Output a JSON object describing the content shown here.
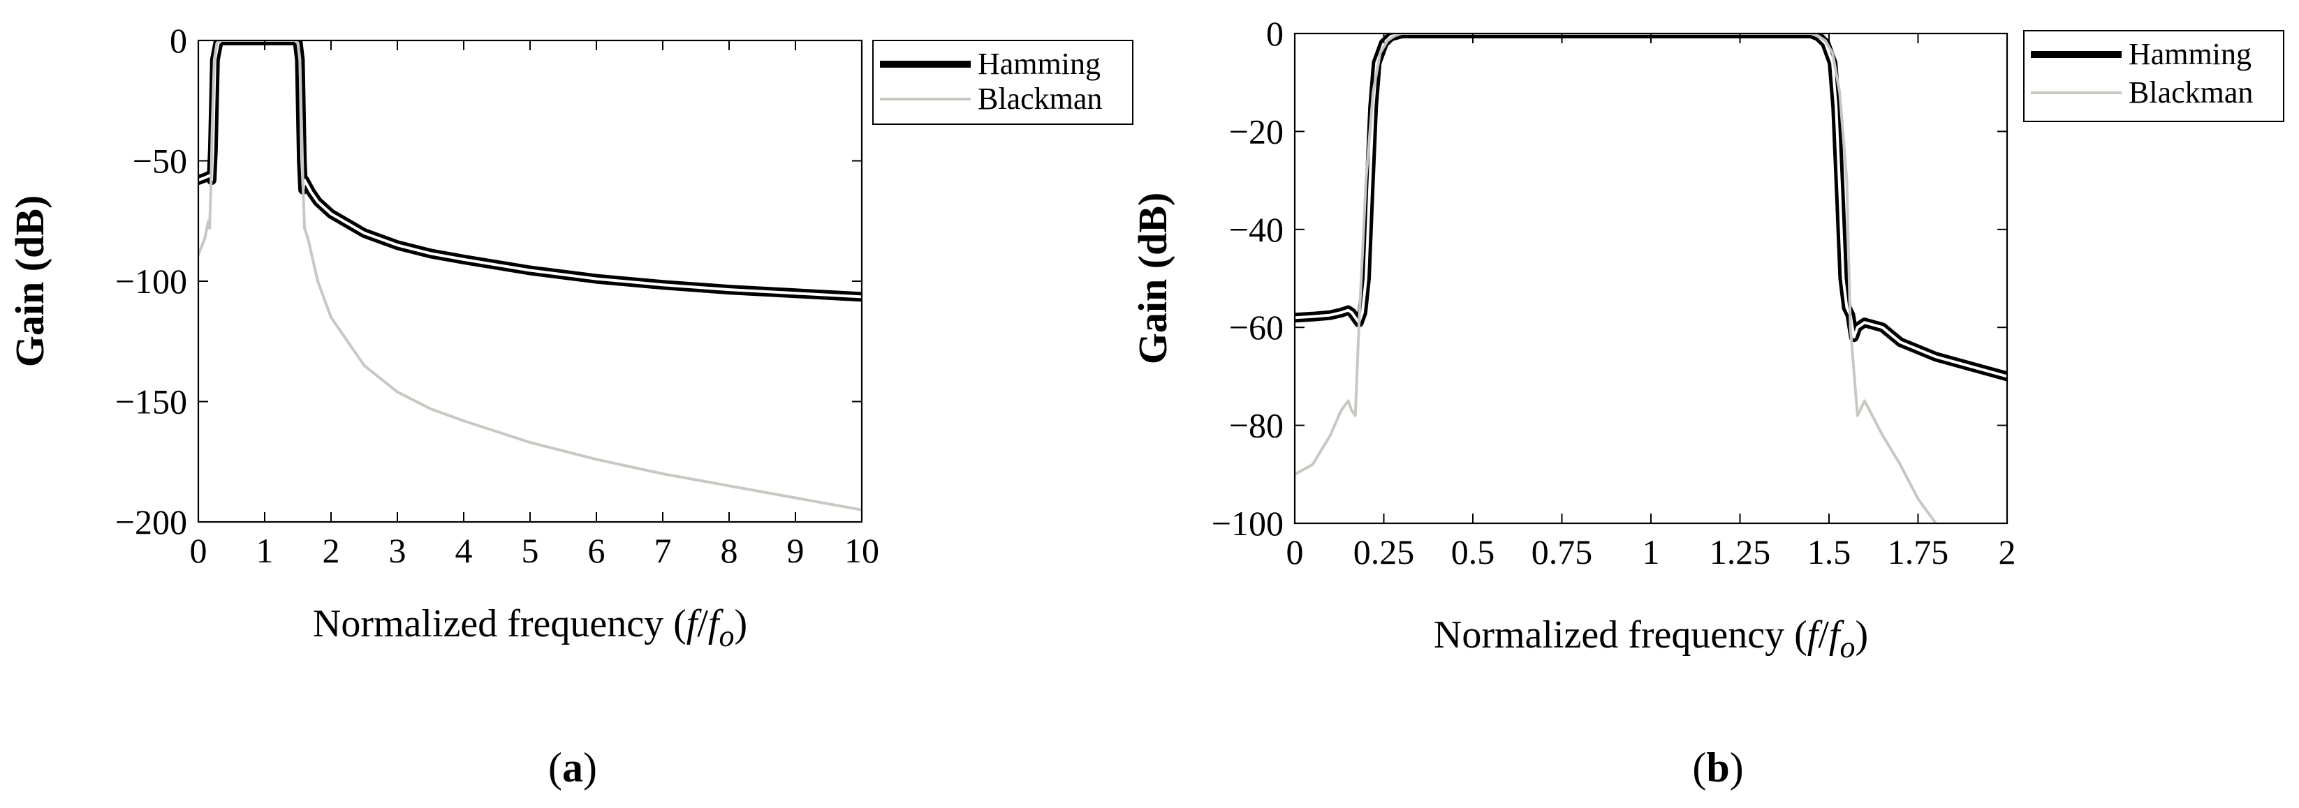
{
  "chart_data": [
    {
      "type": "line",
      "panel_label_prefix": "(",
      "panel_label": "a",
      "panel_label_suffix": ")",
      "title": "",
      "xlabel_prefix": "Normalized frequency (",
      "xlabel_f": "f",
      "xlabel_slash": "/",
      "xlabel_fo": "f",
      "xlabel_sub": "o",
      "xlabel_suffix": ")",
      "ylabel": "Gain (dB)",
      "xlim": [
        0,
        10
      ],
      "ylim": [
        -200,
        0
      ],
      "xticks": [
        0,
        1,
        2,
        3,
        4,
        5,
        6,
        7,
        8,
        9,
        10
      ],
      "xtick_labels": [
        "0",
        "1",
        "2",
        "3",
        "4",
        "5",
        "6",
        "7",
        "8",
        "9",
        "10"
      ],
      "yticks": [
        0,
        -50,
        -100,
        -150,
        -200
      ],
      "ytick_labels": [
        "0",
        "−50",
        "−100",
        "−150",
        "−200"
      ],
      "grid": false,
      "legend_position": "outside-top-right",
      "series": [
        {
          "name": "Hamming",
          "color": "#000000",
          "x": [
            0,
            0.1,
            0.18,
            0.2,
            0.22,
            0.25,
            0.3,
            0.35,
            1.45,
            1.5,
            1.53,
            1.56,
            1.58,
            1.6,
            1.7,
            1.8,
            2,
            2.5,
            3,
            3.5,
            4,
            5,
            6,
            7,
            8,
            9,
            10
          ],
          "y": [
            -58,
            -57,
            -56,
            -58,
            -45,
            -8,
            -1,
            0,
            0,
            -1,
            -8,
            -50,
            -62,
            -58,
            -63,
            -67,
            -72,
            -80,
            -85,
            -88.5,
            -91,
            -95.5,
            -99,
            -101.5,
            -103.5,
            -105,
            -106.5
          ]
        },
        {
          "name": "Blackman",
          "color": "#c8c8c3",
          "x": [
            0,
            0.1,
            0.15,
            0.17,
            0.19,
            0.21,
            0.24,
            0.28,
            0.33,
            1.45,
            1.5,
            1.53,
            1.56,
            1.58,
            1.6,
            1.65,
            1.8,
            2,
            2.5,
            3,
            3.5,
            4,
            5,
            6,
            7,
            8,
            9,
            10
          ],
          "y": [
            -89,
            -82,
            -75,
            -78,
            -60,
            -35,
            -8,
            -1,
            0,
            0,
            -1,
            -8,
            -40,
            -62,
            -78,
            -82,
            -100,
            -115,
            -135,
            -146,
            -153,
            -158,
            -167,
            -174,
            -180,
            -185,
            -190,
            -195
          ]
        }
      ]
    },
    {
      "type": "line",
      "panel_label_prefix": "(",
      "panel_label": "b",
      "panel_label_suffix": ")",
      "title": "",
      "xlabel_prefix": "Normalized frequency (",
      "xlabel_f": "f",
      "xlabel_slash": "/",
      "xlabel_fo": "f",
      "xlabel_sub": "o",
      "xlabel_suffix": ")",
      "ylabel": "Gain (dB)",
      "xlim": [
        0,
        2
      ],
      "ylim": [
        -100,
        0
      ],
      "xticks": [
        0,
        0.25,
        0.5,
        0.75,
        1,
        1.25,
        1.5,
        1.75,
        2
      ],
      "xtick_labels": [
        "0",
        "0.25",
        "0.5",
        "0.75",
        "1",
        "1.25",
        "1.5",
        "1.75",
        "2"
      ],
      "yticks": [
        0,
        -20,
        -40,
        -60,
        -80,
        -100
      ],
      "ytick_labels": [
        "0",
        "−20",
        "−40",
        "−60",
        "−80",
        "−100"
      ],
      "grid": false,
      "legend_position": "outside-top-right",
      "series": [
        {
          "name": "Hamming",
          "color": "#000000",
          "x": [
            0,
            0.05,
            0.1,
            0.13,
            0.15,
            0.16,
            0.17,
            0.18,
            0.19,
            0.2,
            0.21,
            0.22,
            0.23,
            0.25,
            0.27,
            0.3,
            1.45,
            1.47,
            1.49,
            1.51,
            1.52,
            1.53,
            1.54,
            1.55,
            1.56,
            1.57,
            1.58,
            1.6,
            1.65,
            1.7,
            1.8,
            1.9,
            2
          ],
          "y": [
            -58,
            -57.8,
            -57.5,
            -57,
            -56.5,
            -57,
            -58,
            -59,
            -57,
            -50,
            -32,
            -15,
            -6,
            -2,
            -0.6,
            0,
            0,
            -0.6,
            -2,
            -6,
            -15,
            -32,
            -50,
            -56,
            -57.5,
            -62,
            -60,
            -59,
            -60,
            -63,
            -66,
            -68,
            -70
          ]
        },
        {
          "name": "Blackman",
          "color": "#c8c8c3",
          "x": [
            0,
            0.05,
            0.1,
            0.13,
            0.15,
            0.16,
            0.17,
            0.18,
            0.2,
            0.22,
            0.24,
            0.26,
            0.28,
            0.3,
            1.45,
            1.47,
            1.49,
            1.51,
            1.53,
            1.55,
            1.56,
            1.58,
            1.6,
            1.65,
            1.7,
            1.75,
            1.8
          ],
          "y": [
            -90,
            -88,
            -82,
            -77,
            -75,
            -77,
            -78,
            -60,
            -30,
            -12,
            -4,
            -1.5,
            -0.5,
            0,
            0,
            -0.5,
            -1.5,
            -4,
            -12,
            -30,
            -60,
            -78,
            -75,
            -82,
            -88,
            -95,
            -100
          ]
        }
      ]
    }
  ]
}
